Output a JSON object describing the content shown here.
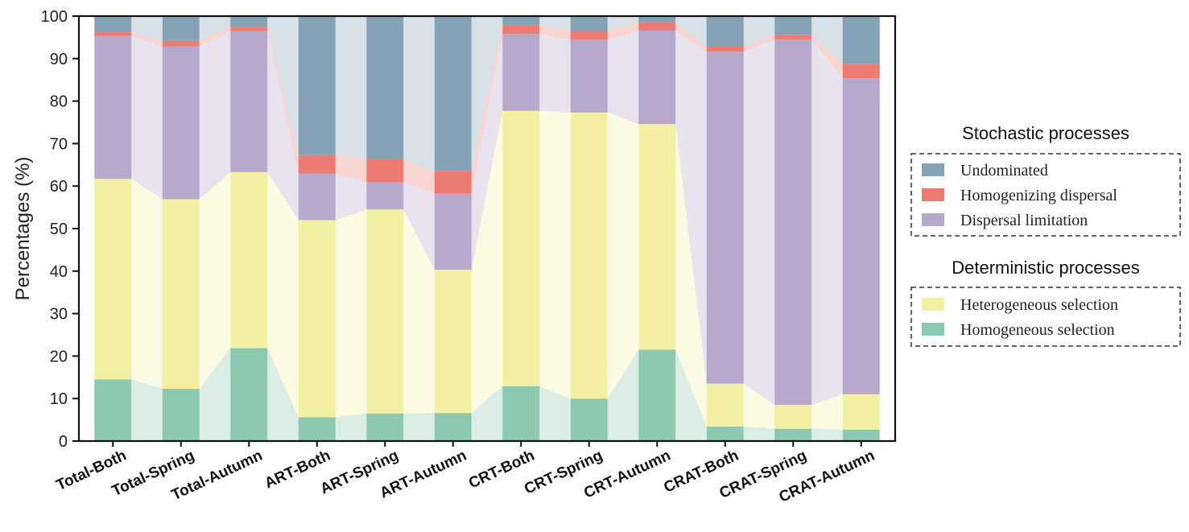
{
  "chart_data": {
    "type": "bar",
    "stacked": true,
    "ylabel": "Percentages (%)",
    "ylim": [
      0,
      100
    ],
    "yticks": [
      0,
      10,
      20,
      30,
      40,
      50,
      60,
      70,
      80,
      90,
      100
    ],
    "categories": [
      "Total-Both",
      "Total-Spring",
      "Total-Autumn",
      "ART-Both",
      "ART-Spring",
      "ART-Autumn",
      "CRT-Both",
      "CRT-Spring",
      "CRT-Autumn",
      "CRAT-Both",
      "CRAT-Spring",
      "CRAT-Autumn"
    ],
    "series": [
      {
        "name": "Homogeneous selection",
        "color": "#8dc9b1",
        "values": [
          14.5,
          12.3,
          21.9,
          5.6,
          6.5,
          6.6,
          12.9,
          10.0,
          21.5,
          3.4,
          2.9,
          2.7
        ]
      },
      {
        "name": "Heterogeneous selection",
        "color": "#f3f0a4",
        "values": [
          47.2,
          44.6,
          41.4,
          46.4,
          48.0,
          33.7,
          64.8,
          67.3,
          53.1,
          10.1,
          5.6,
          8.3
        ]
      },
      {
        "name": "Dispersal limitation",
        "color": "#b7a9cb",
        "values": [
          33.6,
          36.0,
          33.2,
          10.9,
          6.4,
          17.9,
          18.1,
          17.1,
          22.0,
          78.1,
          86.0,
          74.4
        ]
      },
      {
        "name": "Homogenizing dispersal",
        "color": "#ec7b74",
        "values": [
          0.9,
          1.3,
          1.0,
          4.4,
          5.4,
          5.4,
          2.1,
          2.1,
          1.9,
          1.2,
          1.1,
          3.4
        ]
      },
      {
        "name": "Undominated",
        "color": "#86a2b6",
        "values": [
          3.8,
          5.8,
          2.5,
          32.7,
          33.7,
          36.4,
          2.1,
          3.5,
          1.5,
          7.2,
          4.4,
          11.2
        ]
      }
    ],
    "legend": {
      "placement": "right",
      "groups": [
        {
          "title": "Stochastic processes",
          "items": [
            "Undominated",
            "Homogenizing dispersal",
            "Dispersal limitation"
          ]
        },
        {
          "title": "Deterministic processes",
          "items": [
            "Heterogeneous selection",
            "Homogeneous selection"
          ]
        }
      ]
    },
    "grid": false,
    "connector_bands": true
  }
}
